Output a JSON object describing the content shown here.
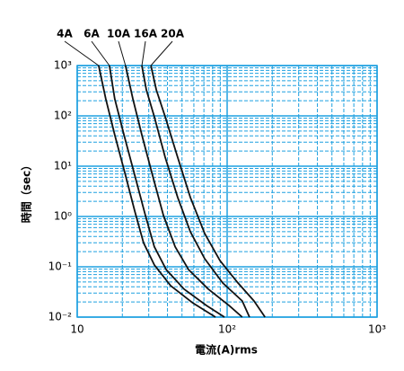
{
  "chart_data": {
    "type": "line",
    "log_x": true,
    "log_y": true,
    "grid": true,
    "grid_color": "#1ea0e0",
    "xlabel": "電流(A)rms",
    "ylabel": "時間（sec）",
    "xlim": [
      10,
      1000
    ],
    "ylim": [
      0.01,
      1000
    ],
    "xticks": [
      10,
      {
        "value": 100,
        "label": "10²"
      },
      {
        "value": 1000,
        "label": "10³"
      }
    ],
    "yticks": [
      {
        "value": 0.01,
        "label": "10⁻²"
      },
      {
        "value": 0.1,
        "label": "10⁻¹"
      },
      {
        "value": 1,
        "label": "10⁰"
      },
      {
        "value": 10,
        "label": "10¹"
      },
      {
        "value": 100,
        "label": "10²"
      },
      {
        "value": 1000,
        "label": "10³"
      }
    ],
    "series": [
      {
        "name": "4A",
        "color": "#111111",
        "x": [
          13.9,
          15.5,
          17.8,
          21.0,
          24.2,
          27.7,
          32.7,
          42.0,
          59.2,
          83.6
        ],
        "values": [
          1000,
          218,
          42,
          6.6,
          1.28,
          0.3,
          0.109,
          0.042,
          0.019,
          0.01
        ]
      },
      {
        "name": "6A",
        "color": "#111111",
        "x": [
          16.4,
          17.8,
          20.5,
          24.2,
          28.5,
          32.7,
          39.2,
          51.6,
          72.8,
          96.0
        ],
        "values": [
          1000,
          218,
          42,
          6.6,
          1.04,
          0.25,
          0.088,
          0.036,
          0.017,
          0.01
        ]
      },
      {
        "name": "10A",
        "color": "#111111",
        "x": [
          21.0,
          23.5,
          27.0,
          31.8,
          37.6,
          45.0,
          55.3,
          74.9,
          103,
          126
        ],
        "values": [
          1000,
          218,
          42,
          6.6,
          1.04,
          0.25,
          0.088,
          0.036,
          0.017,
          0.01
        ]
      },
      {
        "name": "16A",
        "color": "#111111",
        "x": [
          27.0,
          28.9,
          32.7,
          38.6,
          46.8,
          56.8,
          70.8,
          93.3,
          126,
          141
        ],
        "values": [
          1000,
          330,
          96,
          15,
          2.4,
          0.5,
          0.145,
          0.048,
          0.021,
          0.01
        ]
      },
      {
        "name": "20A",
        "color": "#111111",
        "x": [
          31.0,
          33.7,
          38.6,
          46.8,
          56.8,
          70.8,
          89.6,
          118,
          151,
          179
        ],
        "values": [
          1000,
          330,
          96,
          15,
          2.4,
          0.46,
          0.133,
          0.048,
          0.021,
          0.01
        ]
      }
    ]
  }
}
